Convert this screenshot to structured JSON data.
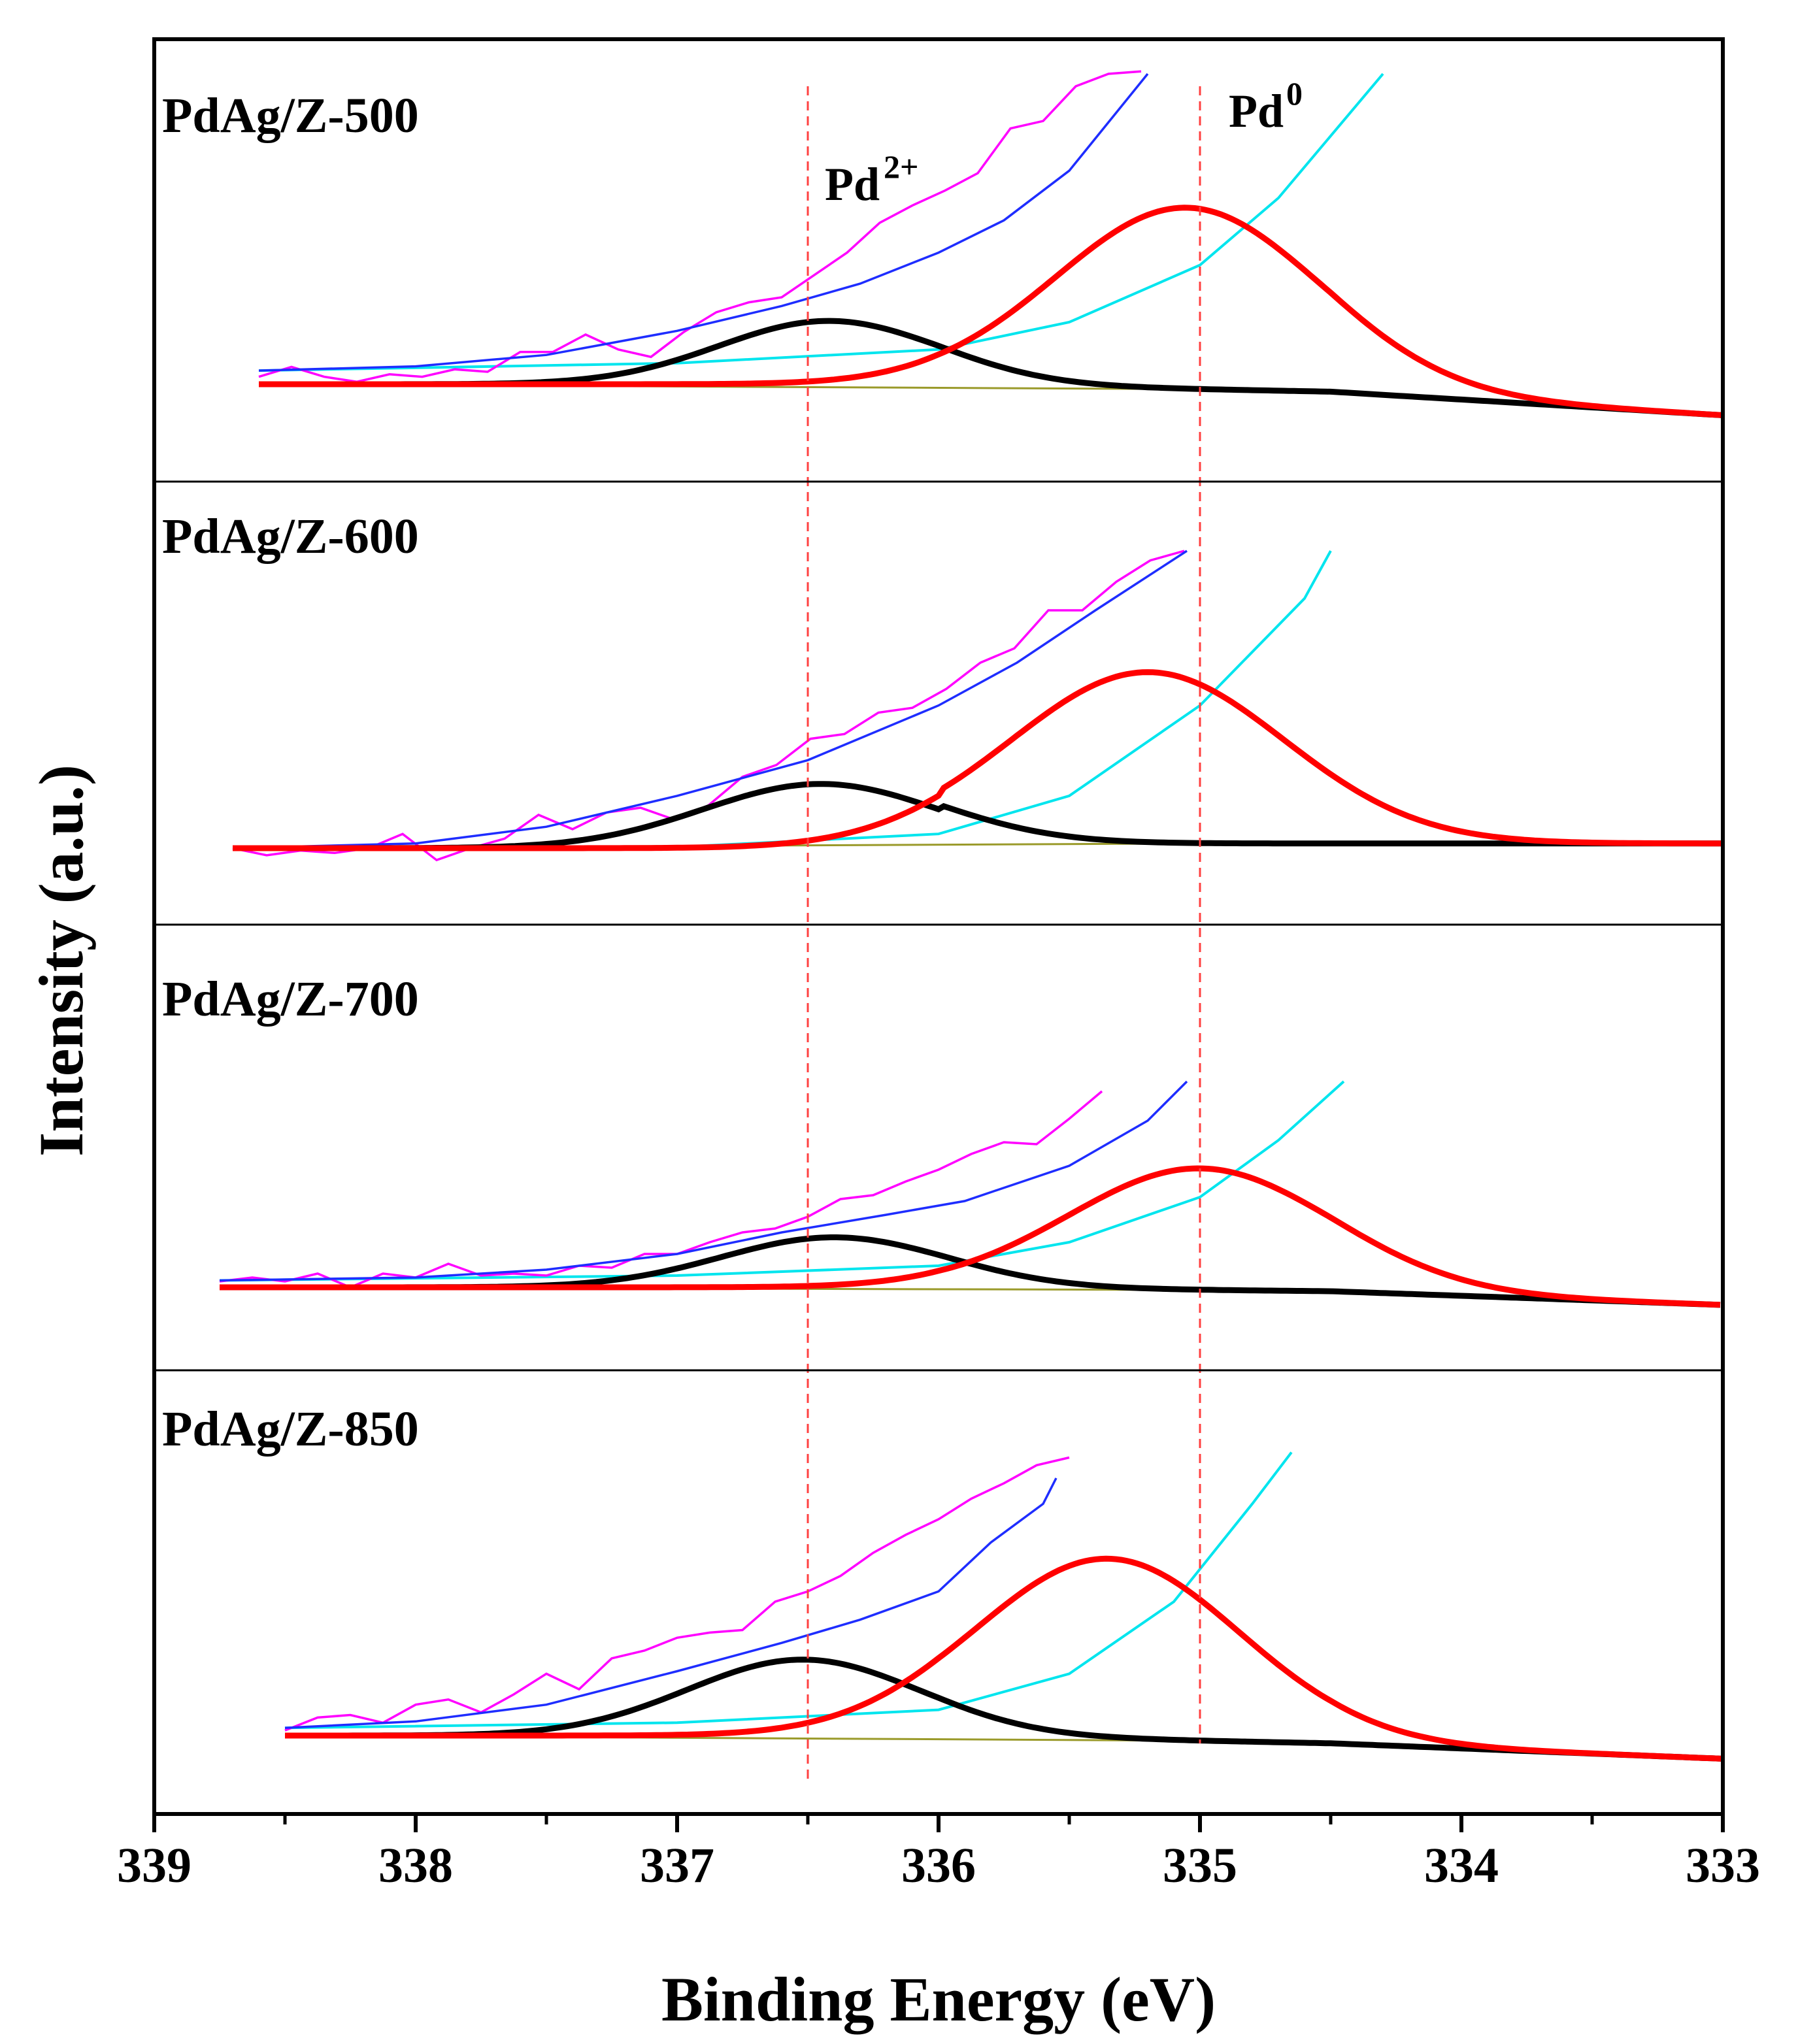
{
  "chart_data": {
    "type": "line",
    "title": "",
    "xlabel": "Binding Energy (eV)",
    "ylabel": "Intensity  (a.u.)",
    "xlim": [
      339,
      333
    ],
    "x_reversed": true,
    "xticks": [
      339,
      338,
      337,
      336,
      335,
      334,
      333
    ],
    "xtick_labels": [
      "339",
      "338",
      "337",
      "336",
      "335",
      "334",
      "333"
    ],
    "grid": false,
    "reference_lines": [
      {
        "x": 336.5,
        "label": "Pd",
        "sup": "2+",
        "color": "#ff4040"
      },
      {
        "x": 335.0,
        "label": "Pd",
        "sup": "0",
        "color": "#ff4040"
      }
    ],
    "colors": {
      "raw": "#ff00ff",
      "envelope": "#1e2dff",
      "pd2": "#000000",
      "pd0": "#ff0000",
      "background": "#00e5ee",
      "baseline": "#9a9a2a",
      "reference": "#ff4040"
    },
    "panels": [
      {
        "label": "PdAg/Z-500",
        "xstart": 338.6,
        "raw_y": [
          0.03,
          0.07,
          0.03,
          0.01,
          0.04,
          0.03,
          0.06,
          0.05,
          0.13,
          0.13,
          0.2,
          0.14,
          0.11,
          0.21,
          0.29,
          0.33,
          0.35,
          0.44,
          0.53,
          0.65,
          0.72,
          0.78,
          0.85,
          1.03,
          1.06,
          1.2,
          1.25,
          1.26
        ],
        "raw_step": 0.125,
        "envelope": [
          [
            338.6,
            0.055
          ],
          [
            338.0,
            0.072
          ],
          [
            337.5,
            0.118
          ],
          [
            337.0,
            0.215
          ],
          [
            336.6,
            0.315
          ],
          [
            336.3,
            0.405
          ],
          [
            336.0,
            0.53
          ],
          [
            335.75,
            0.66
          ],
          [
            335.5,
            0.86
          ],
          [
            335.2,
            1.25
          ]
        ],
        "pd2_peak": {
          "center": 336.42,
          "height": 0.255,
          "sigma": 0.42
        },
        "pd0_peak": {
          "center": 335.05,
          "height": 0.73,
          "sigma": 0.5
        },
        "baseline_tail": [
          [
            336.0,
            0.0
          ],
          [
            334.5,
            -0.03
          ],
          [
            333.0,
            -0.125
          ]
        ],
        "background_curve": [
          [
            338.6,
            0.055
          ],
          [
            337.0,
            0.085
          ],
          [
            336.0,
            0.14
          ],
          [
            335.5,
            0.25
          ],
          [
            335.0,
            0.48
          ],
          [
            334.7,
            0.75
          ],
          [
            334.3,
            1.25
          ]
        ],
        "peak_labels": true
      },
      {
        "label": "PdAg/Z-600",
        "xstart": 338.7,
        "raw_y": [
          0.0,
          -0.03,
          -0.01,
          -0.02,
          0.0,
          0.06,
          -0.05,
          0.0,
          0.04,
          0.14,
          0.08,
          0.15,
          0.17,
          0.12,
          0.18,
          0.3,
          0.35,
          0.46,
          0.48,
          0.57,
          0.59,
          0.67,
          0.78,
          0.84,
          1.0,
          1.0,
          1.12,
          1.21,
          1.25
        ],
        "raw_step": 0.13,
        "envelope": [
          [
            338.7,
            0.0
          ],
          [
            338.0,
            0.02
          ],
          [
            337.5,
            0.09
          ],
          [
            337.0,
            0.22
          ],
          [
            336.5,
            0.37
          ],
          [
            336.0,
            0.6
          ],
          [
            335.7,
            0.78
          ],
          [
            335.4,
            1.0
          ],
          [
            335.05,
            1.25
          ]
        ],
        "pd2_peak": {
          "center": 336.45,
          "height": 0.27,
          "sigma": 0.45
        },
        "pd0_peak": {
          "center": 335.2,
          "height": 0.72,
          "sigma": 0.52
        },
        "baseline_tail": [
          [
            336.0,
            0.02
          ],
          [
            334.5,
            0.02
          ],
          [
            333.0,
            0.02
          ]
        ],
        "background_curve": [
          [
            338.7,
            0.0
          ],
          [
            337.0,
            0.005
          ],
          [
            336.0,
            0.06
          ],
          [
            335.5,
            0.22
          ],
          [
            335.0,
            0.6
          ],
          [
            334.6,
            1.05
          ],
          [
            334.5,
            1.25
          ]
        ],
        "peak_labels": false
      },
      {
        "label": "PdAg/Z-700",
        "xstart": 338.75,
        "raw_y": [
          0.03,
          0.05,
          0.03,
          0.07,
          0.0,
          0.07,
          0.05,
          0.12,
          0.06,
          0.07,
          0.06,
          0.11,
          0.1,
          0.17,
          0.17,
          0.23,
          0.28,
          0.3,
          0.36,
          0.45,
          0.47,
          0.54,
          0.6,
          0.68,
          0.74,
          0.73,
          0.86,
          1.0
        ],
        "raw_step": 0.125,
        "envelope": [
          [
            338.75,
            0.035
          ],
          [
            338.0,
            0.05
          ],
          [
            337.5,
            0.09
          ],
          [
            337.0,
            0.17
          ],
          [
            336.6,
            0.28
          ],
          [
            336.2,
            0.37
          ],
          [
            335.9,
            0.44
          ],
          [
            335.5,
            0.62
          ],
          [
            335.2,
            0.85
          ],
          [
            335.05,
            1.05
          ]
        ],
        "pd2_peak": {
          "center": 336.4,
          "height": 0.255,
          "sigma": 0.43
        },
        "pd0_peak": {
          "center": 335.0,
          "height": 0.62,
          "sigma": 0.5
        },
        "baseline_tail": [
          [
            336.0,
            0.0
          ],
          [
            334.5,
            -0.02
          ],
          [
            333.0,
            -0.09
          ]
        ],
        "background_curve": [
          [
            338.75,
            0.035
          ],
          [
            337.0,
            0.06
          ],
          [
            336.0,
            0.11
          ],
          [
            335.5,
            0.23
          ],
          [
            335.0,
            0.46
          ],
          [
            334.7,
            0.75
          ],
          [
            334.45,
            1.05
          ]
        ],
        "peak_labels": false
      },
      {
        "label": "PdAg/Z-850",
        "xstart": 338.5,
        "raw_y": [
          0.02,
          0.07,
          0.08,
          0.05,
          0.12,
          0.14,
          0.09,
          0.16,
          0.24,
          0.18,
          0.3,
          0.33,
          0.38,
          0.4,
          0.41,
          0.52,
          0.56,
          0.62,
          0.71,
          0.78,
          0.84,
          0.92,
          0.98,
          1.05,
          1.08
        ],
        "raw_step": 0.125,
        "envelope": [
          [
            338.5,
            0.03
          ],
          [
            338.0,
            0.055
          ],
          [
            337.5,
            0.12
          ],
          [
            337.0,
            0.25
          ],
          [
            336.6,
            0.36
          ],
          [
            336.3,
            0.45
          ],
          [
            336.0,
            0.56
          ],
          [
            335.8,
            0.75
          ],
          [
            335.6,
            0.9
          ],
          [
            335.55,
            1.0
          ]
        ],
        "pd2_peak": {
          "center": 336.52,
          "height": 0.295,
          "sigma": 0.44
        },
        "pd0_peak": {
          "center": 335.35,
          "height": 0.7,
          "sigma": 0.5
        },
        "baseline_tail": [
          [
            336.0,
            0.0
          ],
          [
            334.5,
            -0.03
          ],
          [
            333.0,
            -0.09
          ]
        ],
        "background_curve": [
          [
            338.5,
            0.03
          ],
          [
            337.0,
            0.05
          ],
          [
            336.0,
            0.1
          ],
          [
            335.5,
            0.24
          ],
          [
            335.1,
            0.52
          ],
          [
            334.8,
            0.9
          ],
          [
            334.65,
            1.1
          ]
        ],
        "peak_labels": false
      }
    ]
  }
}
